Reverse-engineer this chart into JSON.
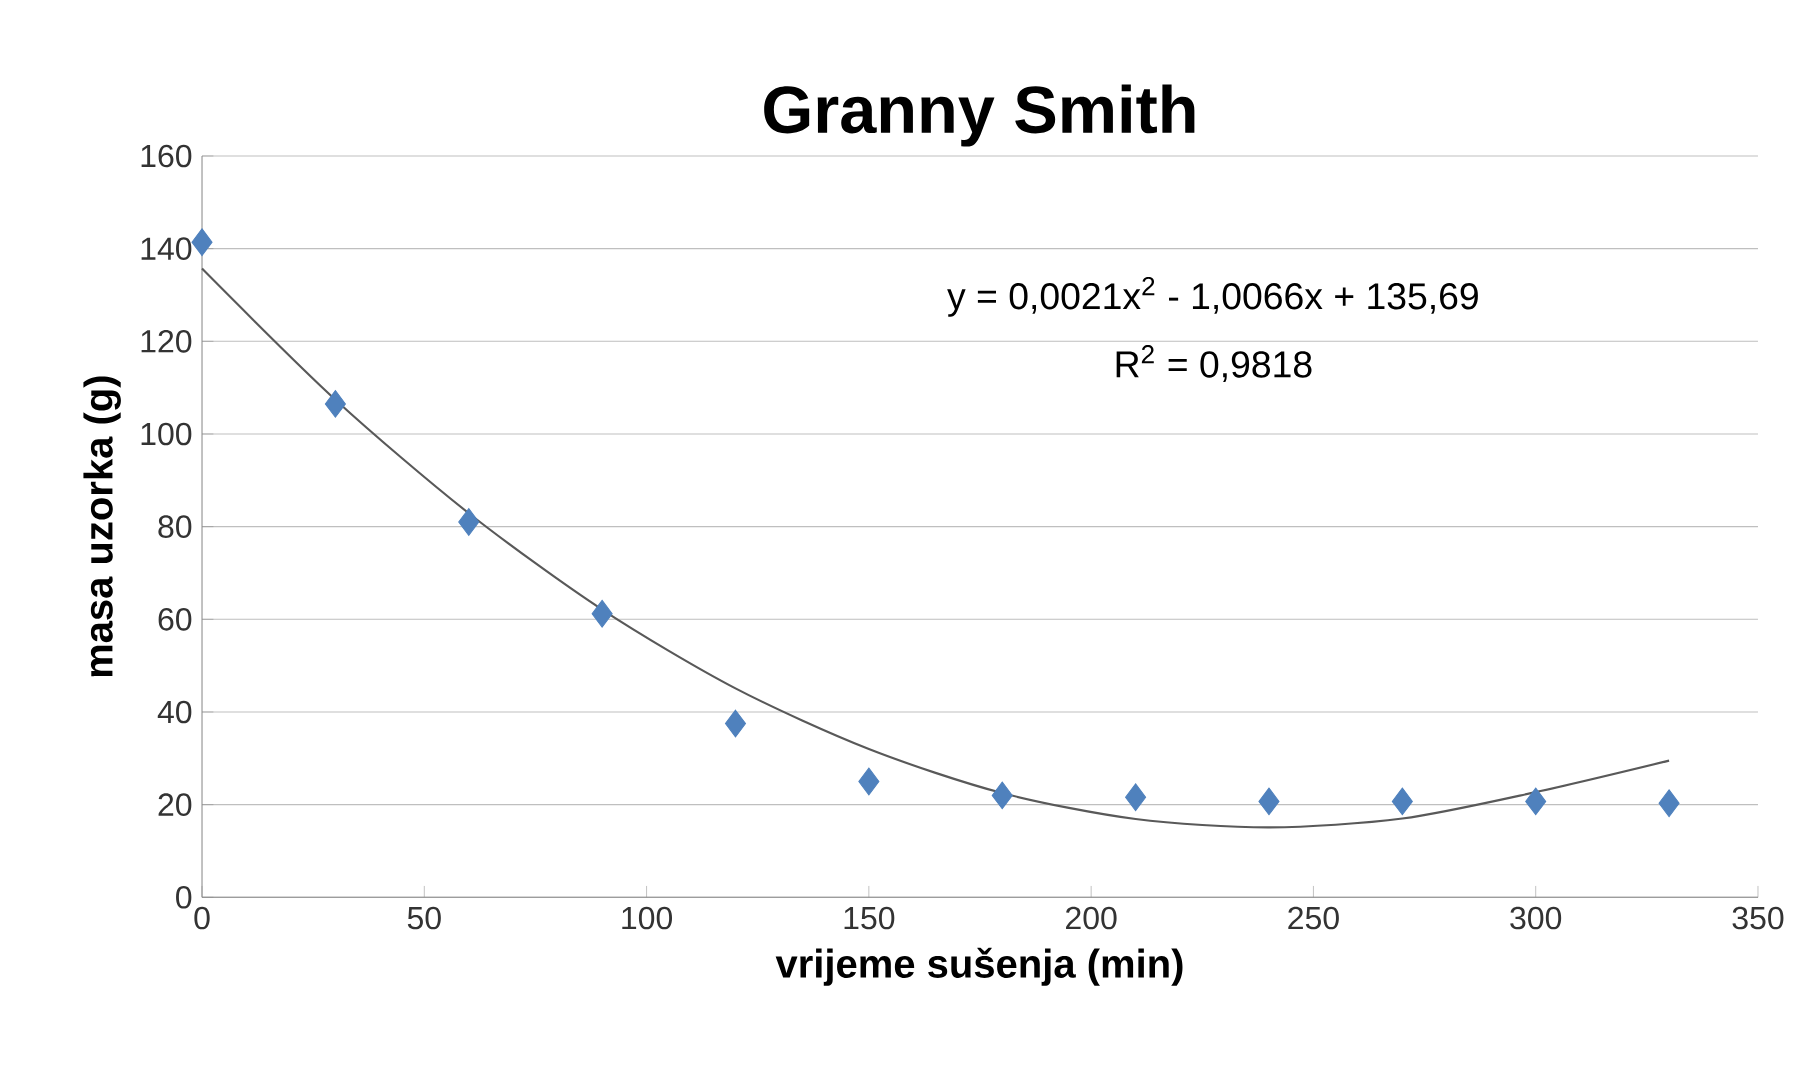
{
  "chart_data": {
    "type": "scatter",
    "title": "Granny Smith",
    "xlabel": "vrijeme sušenja (min)",
    "ylabel": "masa uzorka (g)",
    "annotations": [
      "y = 0,0021x$^{2}$ - 1,0066x + 135,69",
      "R$^{2}$ = 0,9818"
    ],
    "x": [
      0,
      30,
      60,
      90,
      120,
      150,
      180,
      210,
      240,
      270,
      300,
      330
    ],
    "series": [
      {
        "color": "#4f81bd",
        "marker": "diamond",
        "values": [
          141.4,
          106.5,
          81,
          61.2,
          37.5,
          25,
          22,
          21.6,
          20.7,
          20.7,
          20.7,
          20.3
        ]
      },
      {
        "type": "line",
        "color": "#595959",
        "marker": "none",
        "x": [
          0,
          30,
          60,
          90,
          120,
          150,
          180,
          210,
          240,
          270,
          300,
          330
        ],
        "values": [
          135.7,
          107.4,
          82.9,
          62.1,
          45.1,
          32,
          22.5,
          16.9,
          15.1,
          17,
          22.7,
          29.5
        ]
      }
    ],
    "xlim": [
      0,
      350
    ],
    "xticks": [
      0,
      50,
      100,
      150,
      200,
      250,
      300,
      350
    ],
    "ylim": [
      0,
      160
    ],
    "yticks": [
      0,
      20,
      40,
      60,
      80,
      100,
      120,
      140,
      160
    ],
    "grid": "y"
  }
}
